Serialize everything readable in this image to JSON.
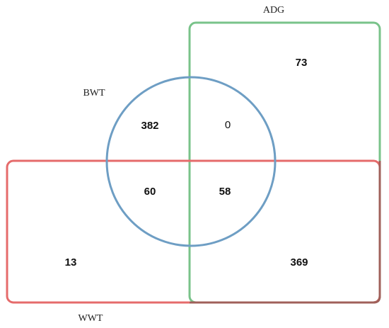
{
  "sets": [
    {
      "name": "ADG"
    },
    {
      "name": "BWT"
    },
    {
      "name": "WWT"
    }
  ],
  "regions": [
    {
      "sets": "BWT only",
      "count": 382
    },
    {
      "sets": "BWT and ADG",
      "count": 0
    },
    {
      "sets": "ADG only",
      "count": 73
    },
    {
      "sets": "BWT and WWT",
      "count": 60
    },
    {
      "sets": "BWT, ADG and WWT",
      "count": 58
    },
    {
      "sets": "WWT only",
      "count": 13
    },
    {
      "sets": "ADG and WWT",
      "count": 369
    }
  ]
}
